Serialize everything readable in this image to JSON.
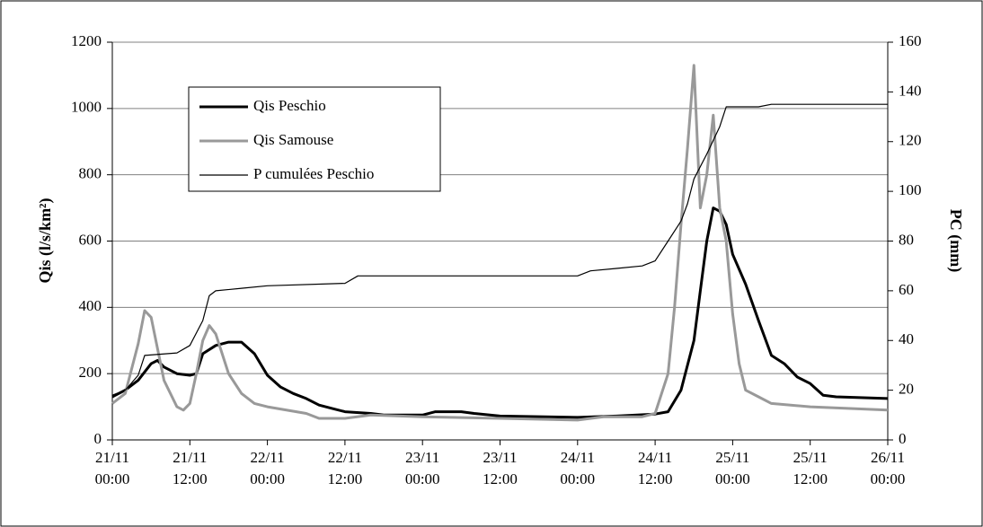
{
  "chart_data": {
    "type": "line",
    "y_label": "Qis (l/s/km²)",
    "y2_label": "PC (mm)",
    "xlim": [
      "21/11 00:00",
      "26/11 00:00"
    ],
    "xticks": [
      "21/11 00:00",
      "21/11 12:00",
      "22/11 00:00",
      "22/11 12:00",
      "23/11 00:00",
      "23/11 12:00",
      "24/11 00:00",
      "24/11 12:00",
      "25/11 00:00",
      "25/11 12:00",
      "26/11 00:00"
    ],
    "ylim": [
      0,
      1200
    ],
    "yticks": [
      0,
      200,
      400,
      600,
      800,
      1000,
      1200
    ],
    "y2lim": [
      0,
      160
    ],
    "y2ticks": [
      0,
      20,
      40,
      60,
      80,
      100,
      120,
      140,
      160
    ],
    "grid": true,
    "legend": "upper left",
    "series": [
      {
        "name": "Qis Peschio",
        "color": "#000000",
        "width": 3,
        "x": [
          "21/11 00:00",
          "21/11 02:00",
          "21/11 04:00",
          "21/11 06:00",
          "21/11 07:00",
          "21/11 08:00",
          "21/11 10:00",
          "21/11 12:00",
          "21/11 13:00",
          "21/11 14:00",
          "21/11 16:00",
          "21/11 18:00",
          "21/11 20:00",
          "21/11 22:00",
          "22/11 00:00",
          "22/11 02:00",
          "22/11 04:00",
          "22/11 06:00",
          "22/11 08:00",
          "22/11 10:00",
          "22/11 12:00",
          "22/11 16:00",
          "22/11 18:00",
          "23/11 00:00",
          "23/11 02:00",
          "23/11 06:00",
          "23/11 08:00",
          "23/11 12:00",
          "24/11 00:00",
          "24/11 06:00",
          "24/11 12:00",
          "24/11 14:00",
          "24/11 16:00",
          "24/11 18:00",
          "24/11 19:00",
          "24/11 20:00",
          "24/11 21:00",
          "24/11 22:00",
          "24/11 23:00",
          "25/11 00:00",
          "25/11 02:00",
          "25/11 04:00",
          "25/11 06:00",
          "25/11 08:00",
          "25/11 10:00",
          "25/11 12:00",
          "25/11 14:00",
          "25/11 16:00",
          "26/11 00:00"
        ],
        "values": [
          130,
          150,
          180,
          230,
          240,
          220,
          200,
          195,
          200,
          260,
          285,
          295,
          295,
          260,
          195,
          160,
          140,
          125,
          105,
          95,
          85,
          80,
          75,
          75,
          85,
          85,
          80,
          72,
          68,
          72,
          78,
          85,
          150,
          300,
          450,
          600,
          700,
          690,
          650,
          560,
          470,
          360,
          255,
          230,
          190,
          170,
          135,
          130,
          125
        ]
      },
      {
        "name": "Qis Samouse",
        "color": "#999999",
        "width": 3,
        "x": [
          "21/11 00:00",
          "21/11 02:00",
          "21/11 04:00",
          "21/11 05:00",
          "21/11 06:00",
          "21/11 08:00",
          "21/11 10:00",
          "21/11 11:00",
          "21/11 12:00",
          "21/11 13:00",
          "21/11 14:00",
          "21/11 15:00",
          "21/11 16:00",
          "21/11 18:00",
          "21/11 20:00",
          "21/11 22:00",
          "22/11 00:00",
          "22/11 06:00",
          "22/11 08:00",
          "22/11 12:00",
          "22/11 16:00",
          "23/11 00:00",
          "23/11 12:00",
          "24/11 00:00",
          "24/11 04:00",
          "24/11 10:00",
          "24/11 12:00",
          "24/11 14:00",
          "24/11 15:00",
          "24/11 16:00",
          "24/11 17:00",
          "24/11 18:00",
          "24/11 19:00",
          "24/11 20:00",
          "24/11 21:00",
          "24/11 22:00",
          "24/11 23:00",
          "25/11 00:00",
          "25/11 01:00",
          "25/11 02:00",
          "25/11 04:00",
          "25/11 06:00",
          "25/11 12:00",
          "26/11 00:00"
        ],
        "values": [
          110,
          140,
          290,
          390,
          370,
          180,
          100,
          90,
          110,
          200,
          300,
          345,
          320,
          200,
          140,
          110,
          100,
          80,
          65,
          65,
          75,
          70,
          65,
          60,
          70,
          70,
          80,
          200,
          400,
          650,
          880,
          1130,
          700,
          800,
          980,
          700,
          600,
          380,
          230,
          150,
          130,
          110,
          100,
          90
        ]
      },
      {
        "name": "P cumulées Peschio",
        "color": "#000000",
        "width": 1.2,
        "axis": "y2",
        "x": [
          "21/11 00:00",
          "21/11 02:00",
          "21/11 04:00",
          "21/11 05:00",
          "21/11 10:00",
          "21/11 12:00",
          "21/11 14:00",
          "21/11 15:00",
          "21/11 16:00",
          "21/11 20:00",
          "22/11 00:00",
          "22/11 12:00",
          "22/11 14:00",
          "24/11 00:00",
          "24/11 02:00",
          "24/11 06:00",
          "24/11 10:00",
          "24/11 12:00",
          "24/11 14:00",
          "24/11 16:00",
          "24/11 17:00",
          "24/11 18:00",
          "24/11 20:00",
          "24/11 22:00",
          "24/11 23:00",
          "25/11 04:00",
          "25/11 06:00",
          "26/11 00:00"
        ],
        "values": [
          18,
          20,
          26,
          34,
          35,
          38,
          48,
          58,
          60,
          61,
          62,
          63,
          66,
          66,
          68,
          69,
          70,
          72,
          80,
          88,
          95,
          105,
          115,
          126,
          134,
          134,
          135,
          135
        ]
      }
    ]
  }
}
